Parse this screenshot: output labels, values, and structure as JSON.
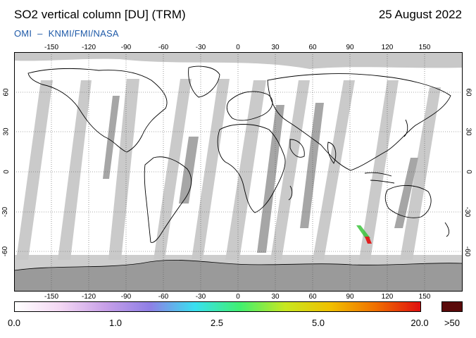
{
  "header": {
    "title": "SO2 vertical column [DU] (TRM)",
    "date": "25 August 2022",
    "credit_left": "OMI",
    "credit_sep": "–",
    "credit_right": "KNMI/FMI/NASA"
  },
  "map": {
    "lon_ticks": [
      "-150",
      "-120",
      "-90",
      "-60",
      "-30",
      "0",
      "30",
      "60",
      "90",
      "120",
      "150"
    ],
    "lat_ticks": [
      "60",
      "30",
      "0",
      "-30",
      "-60"
    ],
    "colors": {
      "ocean": "#ffffff",
      "coastline": "#000000",
      "no_data_swath": "#c8c8c8",
      "no_data_dark": "#a0a0a0",
      "grid": "#555555",
      "hotspot_red": "#e02020",
      "hotspot_green": "#30c030"
    }
  },
  "colorbar": {
    "labels": [
      "0.0",
      "1.0",
      "2.5",
      "5.0",
      "20.0",
      ">50"
    ],
    "colors": [
      "#ffffff",
      "#f4d8f4",
      "#c8a0e8",
      "#8f7fe6",
      "#38e0f0",
      "#40f070",
      "#c8e820",
      "#f0c000",
      "#f07000",
      "#e01010"
    ],
    "max_color": "#5a0a0a"
  }
}
